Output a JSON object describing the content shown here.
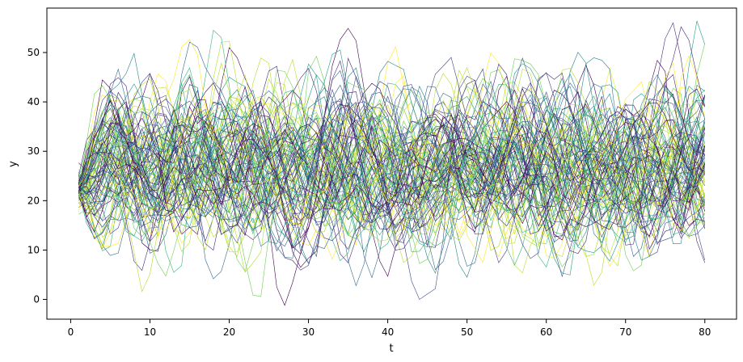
{
  "chart_data": {
    "type": "line",
    "title": "",
    "xlabel": "t",
    "ylabel": "y",
    "xlim": [
      -3.0,
      84.0
    ],
    "ylim": [
      -4.0,
      59.0
    ],
    "xticks": [
      0,
      10,
      20,
      30,
      40,
      50,
      60,
      70,
      80
    ],
    "yticks": [
      0,
      10,
      20,
      30,
      40,
      50
    ],
    "grid": false,
    "legend": "none",
    "colormap": "viridis",
    "series_count": 100,
    "t_start": 1,
    "t_end": 80,
    "start_value": 22,
    "mean_level": 27,
    "approx_range": [
      -1.2,
      56.4
    ],
    "line_width": 0.6,
    "colors": [
      "#440154",
      "#482878",
      "#3e4989",
      "#31688e",
      "#26828e",
      "#1f9e89",
      "#35b779",
      "#6ece58",
      "#b5de2b",
      "#fde725"
    ]
  }
}
